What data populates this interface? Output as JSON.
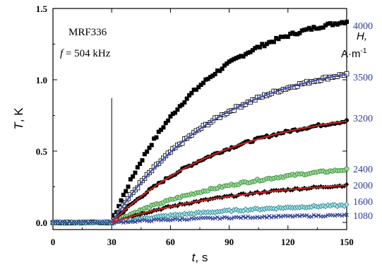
{
  "chart_data": {
    "type": "scatter",
    "annotation_sample": "MRF336",
    "annotation_freq_prefix": "f",
    "annotation_freq_value": " = 504 kHz",
    "xlabel_var": "t",
    "xlabel_unit": ",  s",
    "ylabel_var": "T",
    "ylabel_unit": ",  K",
    "legend_title_var": "H,",
    "legend_title_unit": "A·m",
    "legend_title_exp": "-1",
    "xlim": [
      0,
      150
    ],
    "ylim": [
      -0.05,
      1.5
    ],
    "x_ticks": [
      "0",
      "30",
      "60",
      "90",
      "120",
      "150"
    ],
    "y_ticks": [
      "0.0",
      "0.5",
      "1.0",
      "1.5"
    ],
    "start_time": 30,
    "series": [
      {
        "name": "4000",
        "marker": "filled-square",
        "color": "#000000",
        "fit": false,
        "final": 1.41,
        "tau": 45
      },
      {
        "name": "3500",
        "marker": "open-square",
        "color": "#000000",
        "fit": true,
        "fit_color": "#3f4fb0",
        "final": 1.04,
        "tau": 55
      },
      {
        "name": "3200",
        "marker": "filled-circle",
        "color": "#000000",
        "fit": true,
        "fit_color": "#cc1f1f",
        "final": 0.71,
        "tau": 60
      },
      {
        "name": "2400",
        "marker": "open-circle",
        "color": "#2f8a2f",
        "fill": "#9ad79a",
        "fit": false,
        "final": 0.37,
        "tau": 70
      },
      {
        "name": "2000",
        "marker": "filled-diamond",
        "color": "#000000",
        "fit": true,
        "fit_color": "#cc1f1f",
        "final": 0.26,
        "tau": 70
      },
      {
        "name": "1600",
        "marker": "open-diamond",
        "color": "#2a7f86",
        "fill": "#a6e8ee",
        "fit": false,
        "final": 0.12,
        "tau": 80
      },
      {
        "name": "1080",
        "marker": "cross",
        "color": "#2e3d96",
        "fit": false,
        "final": 0.05,
        "tau": 90
      }
    ]
  }
}
